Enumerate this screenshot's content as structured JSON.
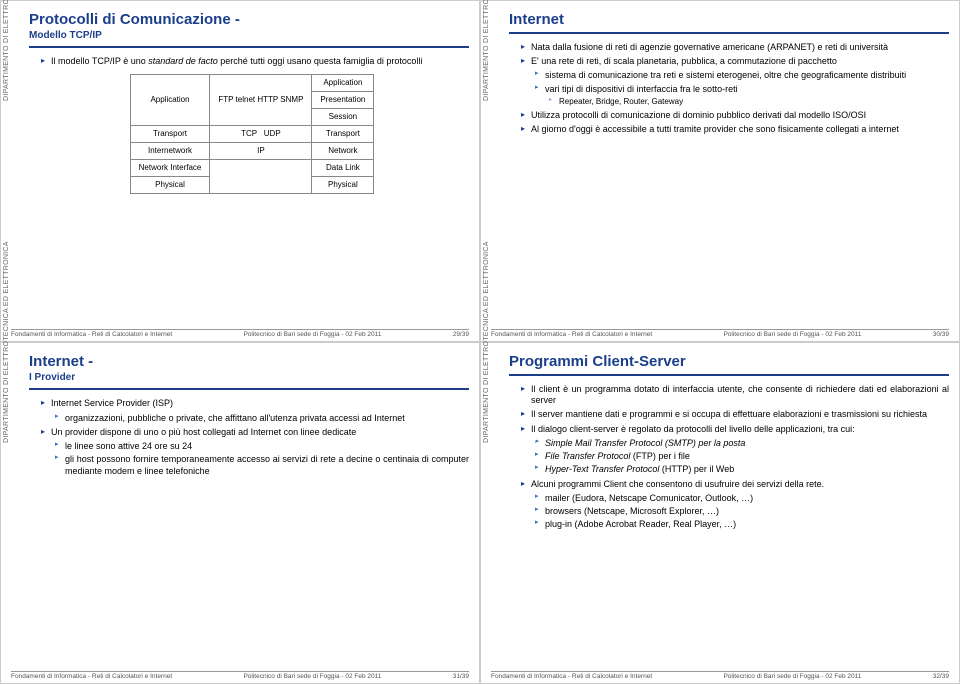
{
  "colors": {
    "brand": "#1b3f8b",
    "text": "#222222"
  },
  "sidebar_text": "DIPARTIMENTO DI ELETTROTECNICA ED ELETTRONICA",
  "footer": {
    "left": "Fondamenti di Informatica - Reti di Calcolatori e Internet",
    "center": "Politecnico di Bari sede di Foggia - 02 Feb 2011"
  },
  "slide1": {
    "title": "Protocolli di Comunicazione -",
    "subtitle": "Modello TCP/IP",
    "intro": "Il modello TCP/IP è uno standard de facto perché tutti oggi usano questa famiglia di protocolli",
    "page": "29/39",
    "table": {
      "headers": [
        "",
        "",
        "Application"
      ],
      "rows": [
        [
          "Application",
          "FTP telnet HTTP SNMP",
          "Presentation"
        ],
        [
          "",
          "",
          "Session"
        ],
        [
          "Transport",
          "TCP    UDP",
          "Transport"
        ],
        [
          "Internetwork",
          "IP",
          "Network"
        ],
        [
          "Network Interface",
          "",
          "Data Link"
        ],
        [
          "Physical",
          "",
          "Physical"
        ]
      ]
    }
  },
  "slide2": {
    "title": "Internet",
    "page": "30/39",
    "b1": "Nata dalla fusione di reti di agenzie governative americane (ARPANET) e reti di università",
    "b2": "E' una rete di reti, di scala planetaria, pubblica, a commutazione di pacchetto",
    "b2a": "sistema di comunicazione tra reti e sistemi eterogenei, oltre che geograficamente distribuiti",
    "b2b": "vari tipi di dispositivi di interfaccia fra le sotto-reti",
    "b2b1": "Repeater, Bridge, Router, Gateway",
    "b3": "Utilizza protocolli di comunicazione di dominio pubblico derivati dal modello ISO/OSI",
    "b4": "Al giorno d'oggi è accessibile a tutti tramite provider che sono fisicamente collegati a internet"
  },
  "slide3": {
    "title": "Internet -",
    "subtitle": "I Provider",
    "page": "31/39",
    "b1": "Internet Service Provider (ISP)",
    "b1a": "organizzazioni, pubbliche o private, che affittano all'utenza privata accessi ad Internet",
    "b2": "Un provider dispone di uno o più host collegati ad Internet con linee dedicate",
    "b2a": "le linee sono attive 24 ore su 24",
    "b2b": "gli host possono fornire temporaneamente accesso ai servizi di rete a decine o centinaia di computer mediante modem e linee telefoniche"
  },
  "slide4": {
    "title": "Programmi Client-Server",
    "page": "32/39",
    "b1": "Il client è un programma dotato di interfaccia utente, che consente di richiedere dati ed elaborazioni al server",
    "b2": "Il server mantiene dati e programmi e si occupa di effettuare elaborazioni e trasmissioni su richiesta",
    "b3": "Il dialogo client-server è regolato da protocolli del livello delle applicazioni, tra cui:",
    "b3a": "Simple Mail Transfer Protocol (SMTP) per la posta",
    "b3b": "File Transfer Protocol (FTP) per i file",
    "b3c": "Hyper-Text Transfer Protocol (HTTP) per il Web",
    "b4": "Alcuni programmi Client che consentono di usufruire dei servizi della rete.",
    "b4a": "mailer (Eudora, Netscape Comunicator, Outlook, …)",
    "b4b": "browsers (Netscape, Microsoft Explorer, …)",
    "b4c": "plug-in (Adobe Acrobat Reader, Real Player, …)"
  }
}
